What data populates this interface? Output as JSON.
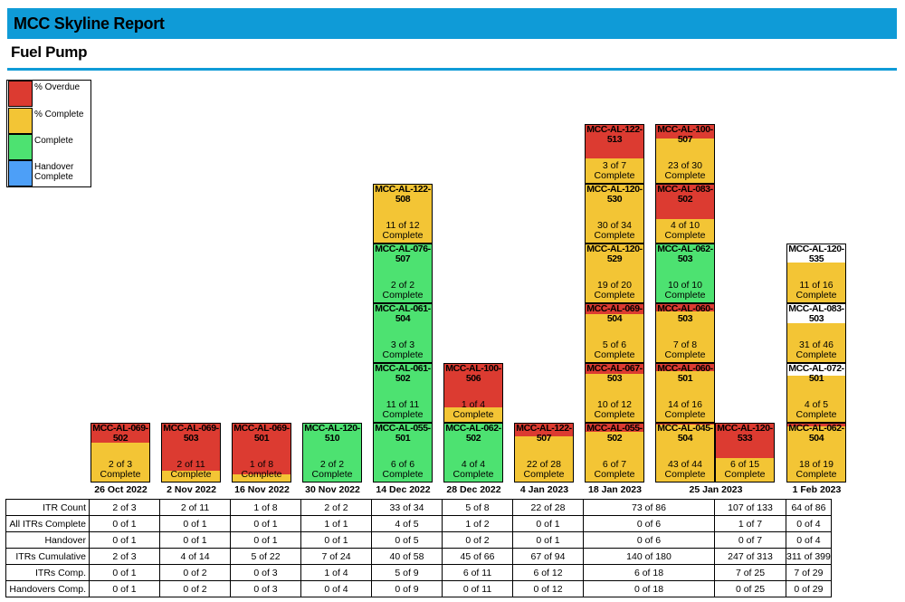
{
  "header": {
    "title": "MCC Skyline Report",
    "subtitle": "Fuel Pump"
  },
  "legend": [
    {
      "label": "% Overdue",
      "color": "#dc3b31"
    },
    {
      "label": "% Complete",
      "color": "#f3c535"
    },
    {
      "label": "Complete",
      "color": "#4de271"
    },
    {
      "label": "Handover Complete",
      "color": "#4d9ff7"
    }
  ],
  "colors": {
    "overdue": "#dc3b31",
    "complete_pct": "#f3c535",
    "complete": "#4de271",
    "handover": "#4d9ff7",
    "unstarted": "#ffffff",
    "title_bar": "#0f9bd7"
  },
  "chart_data": {
    "type": "bar",
    "stacked": true,
    "categories": [
      "26 Oct 2022",
      "2 Nov 2022",
      "16 Nov 2022",
      "30 Nov 2022",
      "14 Dec 2022",
      "28 Dec 2022",
      "4 Jan 2023",
      "18 Jan 2023",
      "25 Jan 2023",
      "1 Feb 2023"
    ],
    "columns": [
      {
        "date": "26 Oct 2022",
        "stacks": [
          [
            {
              "id": "MCC-AL-069-502",
              "done": 2,
              "total": 3,
              "status": "overdue"
            }
          ]
        ]
      },
      {
        "date": "2 Nov 2022",
        "stacks": [
          [
            {
              "id": "MCC-AL-069-503",
              "done": 2,
              "total": 11,
              "status": "overdue"
            }
          ]
        ]
      },
      {
        "date": "16 Nov 2022",
        "stacks": [
          [
            {
              "id": "MCC-AL-069-501",
              "done": 1,
              "total": 8,
              "status": "overdue"
            }
          ]
        ]
      },
      {
        "date": "30 Nov 2022",
        "stacks": [
          [
            {
              "id": "MCC-AL-120-510",
              "done": 2,
              "total": 2,
              "status": "complete"
            }
          ]
        ]
      },
      {
        "date": "14 Dec 2022",
        "stacks": [
          [
            {
              "id": "MCC-AL-055-501",
              "done": 6,
              "total": 6,
              "status": "complete"
            },
            {
              "id": "MCC-AL-061-502",
              "done": 11,
              "total": 11,
              "status": "complete"
            },
            {
              "id": "MCC-AL-061-504",
              "done": 3,
              "total": 3,
              "status": "complete"
            },
            {
              "id": "MCC-AL-076-507",
              "done": 2,
              "total": 2,
              "status": "complete"
            },
            {
              "id": "MCC-AL-122-508",
              "done": 11,
              "total": 12,
              "status": "in-progress"
            }
          ]
        ]
      },
      {
        "date": "28 Dec 2022",
        "stacks": [
          [
            {
              "id": "MCC-AL-062-502",
              "done": 4,
              "total": 4,
              "status": "complete"
            },
            {
              "id": "MCC-AL-100-506",
              "done": 1,
              "total": 4,
              "status": "overdue"
            }
          ]
        ]
      },
      {
        "date": "4 Jan 2023",
        "stacks": [
          [
            {
              "id": "MCC-AL-122-507",
              "done": 22,
              "total": 28,
              "status": "overdue"
            }
          ]
        ]
      },
      {
        "date": "18 Jan 2023",
        "stacks": [
          [
            {
              "id": "MCC-AL-055-502",
              "done": 6,
              "total": 7,
              "status": "overdue"
            },
            {
              "id": "MCC-AL-067-503",
              "done": 10,
              "total": 12,
              "status": "overdue"
            },
            {
              "id": "MCC-AL-069-504",
              "done": 5,
              "total": 6,
              "status": "overdue"
            },
            {
              "id": "MCC-AL-120-529",
              "done": 19,
              "total": 20,
              "status": "in-progress"
            },
            {
              "id": "MCC-AL-120-530",
              "done": 30,
              "total": 34,
              "status": "in-progress"
            },
            {
              "id": "MCC-AL-122-513",
              "done": 3,
              "total": 7,
              "status": "overdue"
            }
          ]
        ]
      },
      {
        "date": "25 Jan 2023",
        "stacks": [
          [
            {
              "id": "MCC-AL-045-504",
              "done": 43,
              "total": 44,
              "status": "overdue"
            },
            {
              "id": "MCC-AL-060-501",
              "done": 14,
              "total": 16,
              "status": "overdue"
            },
            {
              "id": "MCC-AL-060-503",
              "done": 7,
              "total": 8,
              "status": "overdue"
            },
            {
              "id": "MCC-AL-062-503",
              "done": 10,
              "total": 10,
              "status": "complete"
            },
            {
              "id": "MCC-AL-083-502",
              "done": 4,
              "total": 10,
              "status": "overdue"
            },
            {
              "id": "MCC-AL-100-507",
              "done": 23,
              "total": 30,
              "status": "overdue"
            }
          ],
          [
            {
              "id": "MCC-AL-120-533",
              "done": 6,
              "total": 15,
              "status": "overdue"
            }
          ]
        ]
      },
      {
        "date": "1 Feb 2023",
        "stacks": [
          [
            {
              "id": "MCC-AL-062-504",
              "done": 18,
              "total": 19,
              "status": "overdue"
            },
            {
              "id": "MCC-AL-072-501",
              "done": 4,
              "total": 5,
              "status": "not-due"
            },
            {
              "id": "MCC-AL-083-503",
              "done": 31,
              "total": 46,
              "status": "not-due"
            },
            {
              "id": "MCC-AL-120-535",
              "done": 11,
              "total": 16,
              "status": "not-due"
            }
          ]
        ]
      }
    ],
    "count_suffix": "Complete"
  },
  "table": {
    "rows": [
      {
        "label": "ITR Count",
        "values": [
          "2 of 3",
          "2 of 11",
          "1 of 8",
          "2 of 2",
          "33 of 34",
          "5 of 8",
          "22 of 28",
          "73 of 86",
          "107 of 133",
          "64 of 86"
        ]
      },
      {
        "label": "All ITRs Complete",
        "values": [
          "0 of 1",
          "0 of 1",
          "0 of 1",
          "1 of 1",
          "4 of 5",
          "1 of 2",
          "0 of 1",
          "0 of 6",
          "1 of 7",
          "0 of 4"
        ]
      },
      {
        "label": "Handover",
        "values": [
          "0 of 1",
          "0 of 1",
          "0 of 1",
          "0 of 1",
          "0 of 5",
          "0 of 2",
          "0 of 1",
          "0 of 6",
          "0 of 7",
          "0 of 4"
        ]
      },
      {
        "label": "ITRs Cumulative",
        "values": [
          "2 of 3",
          "4 of 14",
          "5 of 22",
          "7 of 24",
          "40 of 58",
          "45 of 66",
          "67 of 94",
          "140 of 180",
          "247 of 313",
          "311 of 399"
        ]
      },
      {
        "label": "ITRs Comp.",
        "values": [
          "0 of 1",
          "0 of 2",
          "0 of 3",
          "1 of 4",
          "5 of 9",
          "6 of 11",
          "6 of 12",
          "6 of 18",
          "7 of 25",
          "7 of 29"
        ]
      },
      {
        "label": "Handovers Comp.",
        "values": [
          "0 of 1",
          "0 of 2",
          "0 of 3",
          "0 of 4",
          "0 of 9",
          "0 of 11",
          "0 of 12",
          "0 of 18",
          "0 of 25",
          "0 of 29"
        ]
      }
    ]
  }
}
